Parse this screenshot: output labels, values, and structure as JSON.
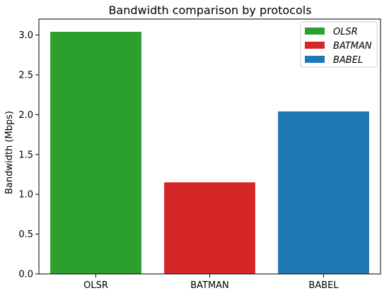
{
  "chart_data": {
    "type": "bar",
    "title": "Bandwidth comparison by protocols",
    "xlabel": "",
    "ylabel": "Bandwidth (Mbps)",
    "ylim": [
      0,
      3.2
    ],
    "yticks": [
      "0.0",
      "0.5",
      "1.0",
      "1.5",
      "2.0",
      "2.5",
      "3.0"
    ],
    "categories": [
      "OLSR",
      "BATMAN",
      "BABEL"
    ],
    "values": [
      3.04,
      1.15,
      2.04
    ],
    "colors": [
      "#2ca02c",
      "#d62728",
      "#1f77b4"
    ],
    "legend": {
      "position": "top-right",
      "entries": [
        "OLSR",
        "BATMAN",
        "BABEL"
      ]
    },
    "grid": false
  }
}
